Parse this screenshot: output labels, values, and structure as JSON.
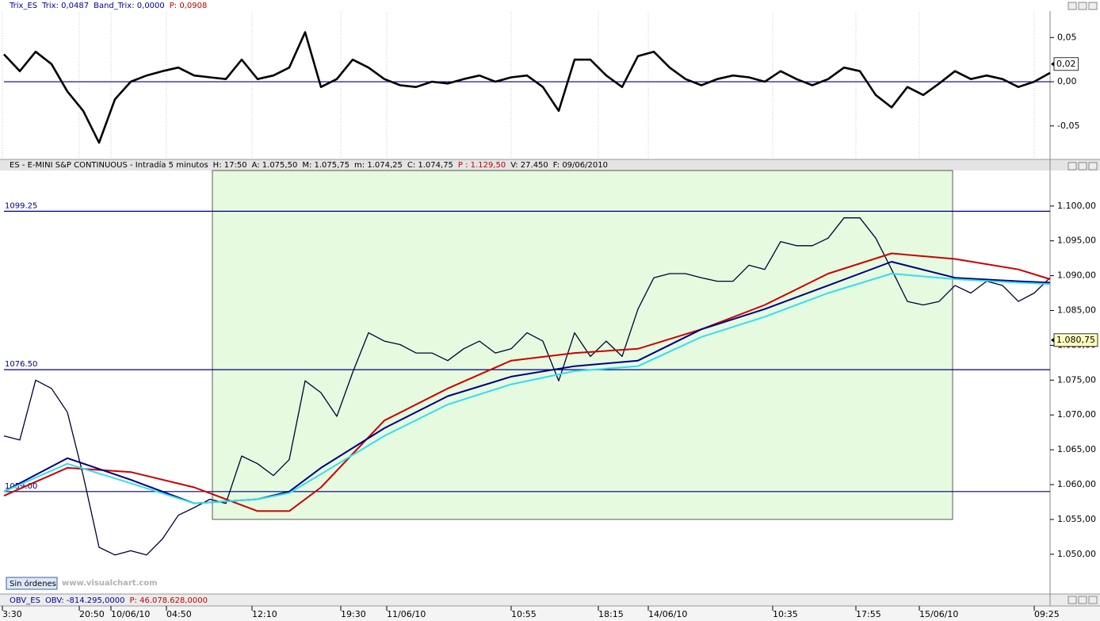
{
  "window": {
    "button": "Sin órdenes",
    "watermark": "www.visualchart.com"
  },
  "chart_data": [
    {
      "type": "line",
      "header": [
        {
          "text": "Trix_ES",
          "color": "#0000a0"
        },
        {
          "text": "Trix: 0,0487",
          "color": "#0000a0"
        },
        {
          "text": "Band_Trix: 0,0000",
          "color": "#0000a0"
        },
        {
          "text": "P: 0,0908",
          "color": "#c00000"
        }
      ],
      "xlim": [
        0,
        66
      ],
      "ylim": [
        -0.087,
        0.079
      ],
      "yticks": [
        {
          "value": 0.05,
          "label": "0,05"
        },
        {
          "value": 0,
          "label": "0,00"
        },
        {
          "value": -0.05,
          "label": "-0,05"
        }
      ],
      "hlines": [
        {
          "value": 0,
          "color": "#000080"
        }
      ],
      "last_value": {
        "value": 0.02,
        "label": "0,02",
        "color": "#ffffff"
      },
      "series": [
        {
          "color": "#000000",
          "values": [
            0.031,
            0.012,
            0.034,
            0.02,
            -0.011,
            -0.033,
            -0.069,
            -0.02,
            0,
            0.007,
            0.012,
            0.016,
            0.007,
            0.005,
            0.003,
            0.025,
            0.003,
            0.007,
            0.016,
            0.056,
            -0.006,
            0.003,
            0.025,
            0.016,
            0.003,
            -0.004,
            -0.006,
            0,
            -0.002,
            0.003,
            0.007,
            0,
            0.005,
            0.007,
            -0.006,
            -0.033,
            0.025,
            0.025,
            0.007,
            -0.006,
            0.029,
            0.034,
            0.016,
            0.003,
            -0.004,
            0.003,
            0.007,
            0.005,
            0,
            0.012,
            0.003,
            -0.004,
            0.003,
            0.016,
            0.012,
            -0.015,
            -0.029,
            -0.006,
            -0.015,
            -0.002,
            0.012,
            0.003,
            0.007,
            0.003,
            -0.006,
            0,
            0.01
          ]
        }
      ]
    },
    {
      "type": "line",
      "header": [
        {
          "text": "ES - E-MINI S&P CONTINUOUS - Intradía 5 minutos",
          "color": "#000000"
        },
        {
          "text": "H: 17:50",
          "color": "#000000"
        },
        {
          "text": "A: 1.075,50",
          "color": "#000000"
        },
        {
          "text": "M: 1.075,75",
          "color": "#000000"
        },
        {
          "text": "m: 1.074,25",
          "color": "#000000"
        },
        {
          "text": "C: 1.074,75",
          "color": "#000000"
        },
        {
          "text": "P : 1.129,50",
          "color": "#c00000"
        },
        {
          "text": "V: 27.450",
          "color": "#000000"
        },
        {
          "text": "F: 09/06/2010",
          "color": "#000000"
        }
      ],
      "xlim": [
        0,
        66
      ],
      "ylim": [
        1044.4,
        1105.1
      ],
      "yticks": [
        {
          "value": 1050,
          "label": "1.050,00"
        },
        {
          "value": 1055,
          "label": "1.055,00"
        },
        {
          "value": 1060,
          "label": "1.060,00"
        },
        {
          "value": 1065,
          "label": "1.065,00"
        },
        {
          "value": 1070,
          "label": "1.070,00"
        },
        {
          "value": 1075,
          "label": "1.075,00"
        },
        {
          "value": 1080,
          "label": "1.080,00"
        },
        {
          "value": 1085,
          "label": "1.085,00"
        },
        {
          "value": 1090,
          "label": "1.090,00"
        },
        {
          "value": 1095,
          "label": "1.095,00"
        },
        {
          "value": 1100,
          "label": "1.100,00"
        }
      ],
      "xticks": [
        {
          "value": -0.1,
          "label": "3:30"
        },
        {
          "value": 4.75,
          "label": "20:50"
        },
        {
          "value": 6.75,
          "label": "10/06/10"
        },
        {
          "value": 10.25,
          "label": "04:50"
        },
        {
          "value": 15.65,
          "label": "12:10"
        },
        {
          "value": 21.25,
          "label": "19:30"
        },
        {
          "value": 24.15,
          "label": "11/06/10"
        },
        {
          "value": 32,
          "label": "10:55"
        },
        {
          "value": 37.5,
          "label": "18:15"
        },
        {
          "value": 40.65,
          "label": "14/06/10"
        },
        {
          "value": 48.5,
          "label": "10:35"
        },
        {
          "value": 53.75,
          "label": "17:55"
        },
        {
          "value": 57.75,
          "label": "15/06/10"
        },
        {
          "value": 65,
          "label": "09:25"
        }
      ],
      "highlight": {
        "x": [
          13.15,
          59.85
        ],
        "low": 1055,
        "color": "#e6fae0"
      },
      "hlines": [
        {
          "value": 1099.25,
          "color": "#000080"
        },
        {
          "value": {
            "value": 1076.5,
            "label": "1076.50"
          },
          "color": "#000080"
        },
        {
          "value": {
            "value": 1059,
            "label": "1059.00"
          },
          "color": "#000080"
        }
      ],
      "last_value": {
        "value": 1080.75,
        "label": "1.080,75",
        "color": "#ffffc0"
      },
      "series": [
        {
          "color": "#000033",
          "values": [
            1067,
            1066.4,
            1075,
            1073.8,
            1070.4,
            1061.3,
            1051,
            1049.9,
            1050.5,
            1049.9,
            1052.2,
            1055.6,
            1056.7,
            1057.9,
            1057.3,
            1064.1,
            1063,
            1061.3,
            1063.6,
            1074.9,
            1073.2,
            1069.8,
            1076.1,
            1081.8,
            1080.6,
            1080.1,
            1078.9,
            1078.9,
            1077.8,
            1079.5,
            1080.6,
            1078.9,
            1079.5,
            1081.8,
            1080.6,
            1074.9,
            1081.8,
            1078.4,
            1080.6,
            1078.4,
            1085.2,
            1089.7,
            1090.3,
            1090.3,
            1089.7,
            1089.2,
            1089.2,
            1091.5,
            1090.9,
            1094.9,
            1094.3,
            1094.3,
            1095.4,
            1098.3,
            1098.3,
            1095.4,
            1090.9,
            1086.3,
            1085.8,
            1086.3,
            1088.6,
            1087.5,
            1089.2,
            1088.6,
            1086.3,
            1087.5,
            1089.7
          ]
        },
        {
          "color": "#cc0000",
          "x": [
            0,
            4,
            8,
            12,
            16,
            18,
            20,
            24,
            28,
            32,
            36,
            40,
            44,
            48,
            52,
            56,
            60,
            64,
            66
          ],
          "values": [
            1058.4,
            1062.4,
            1061.8,
            1059.6,
            1056.2,
            1056.2,
            1059.6,
            1069.2,
            1073.8,
            1077.8,
            1078.9,
            1079.5,
            1082.3,
            1085.8,
            1090.3,
            1093.2,
            1092.4,
            1090.9,
            1089.5
          ]
        },
        {
          "color": "#000080",
          "x": [
            0,
            4,
            8,
            12,
            16,
            18,
            20,
            24,
            28,
            32,
            36,
            40,
            44,
            48,
            52,
            56,
            60,
            64,
            66
          ],
          "values": [
            1059,
            1063.8,
            1060.7,
            1057.3,
            1057.9,
            1059,
            1062.4,
            1068.1,
            1072.7,
            1075.5,
            1077,
            1077.8,
            1082.3,
            1085.2,
            1088.6,
            1092,
            1089.7,
            1089.2,
            1089
          ]
        },
        {
          "color": "#33ddee",
          "x": [
            0,
            4,
            8,
            12,
            16,
            18,
            20,
            24,
            28,
            32,
            36,
            40,
            44,
            48,
            52,
            56,
            60,
            64,
            66
          ],
          "values": [
            1059,
            1063,
            1060.2,
            1057.3,
            1057.9,
            1058.8,
            1061.5,
            1067,
            1071.5,
            1074.4,
            1076.3,
            1077,
            1081.2,
            1084.1,
            1087.5,
            1090.3,
            1089.5,
            1089,
            1088.8
          ]
        }
      ]
    },
    {
      "type": "line",
      "header": [
        {
          "text": "OBV_ES",
          "color": "#0000a0"
        },
        {
          "text": "OBV: -814.295,0000",
          "color": "#0000a0"
        },
        {
          "text": "P: 46.078.628,0000",
          "color": "#c00000"
        }
      ]
    }
  ]
}
